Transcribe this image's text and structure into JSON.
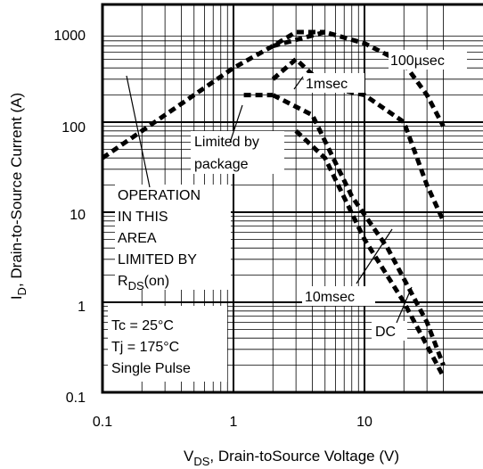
{
  "chart_data": {
    "type": "line",
    "x_scale": "log",
    "y_scale": "log",
    "xlim": [
      0.1,
      40
    ],
    "ylim": [
      0.1,
      1000
    ],
    "grid": true,
    "x_ticks": [
      "0.1",
      "1",
      "10"
    ],
    "y_ticks": [
      "1000",
      "100",
      "10",
      "1",
      "0.1"
    ],
    "xlabel": {
      "main": "V",
      "sub": "DS",
      "rest": ", Drain-toSource Voltage (V)"
    },
    "ylabel": {
      "main": "I",
      "sub": "D",
      "rest": ",  Drain-to-Source Current (A)"
    },
    "annotations": {
      "label_100us": "100µsec",
      "label_1ms": "1msec",
      "label_10ms": "10msec",
      "label_dc": "DC",
      "limited_line1": "Limited by",
      "limited_line2": "package",
      "operation_lines": [
        "OPERATION",
        "IN THIS",
        "AREA",
        "LIMITED BY"
      ],
      "rds_main": "R",
      "rds_sub": "DS",
      "rds_rest": "(on)",
      "conditions": [
        "Tc = 25°C",
        "Tj = 175°C",
        "Single Pulse"
      ]
    },
    "series": [
      {
        "key": "rds_limit",
        "points": [
          [
            0.1,
            40
          ],
          [
            0.2,
            80
          ],
          [
            0.5,
            200
          ],
          [
            1,
            400
          ],
          [
            2,
            700
          ],
          [
            3,
            1000
          ],
          [
            5,
            1000
          ]
        ]
      },
      {
        "key": "package_limit",
        "points": [
          [
            1.2,
            200
          ],
          [
            2,
            200
          ]
        ]
      },
      {
        "key": "100us",
        "points": [
          [
            2,
            700
          ],
          [
            5,
            1000
          ],
          [
            10,
            750
          ],
          [
            20,
            450
          ],
          [
            30,
            200
          ],
          [
            40,
            90
          ]
        ]
      },
      {
        "key": "1ms",
        "points": [
          [
            2,
            300
          ],
          [
            3,
            500
          ],
          [
            5,
            250
          ],
          [
            10,
            200
          ],
          [
            20,
            100
          ],
          [
            30,
            20
          ],
          [
            40,
            8
          ]
        ]
      },
      {
        "key": "10ms",
        "points": [
          [
            2,
            200
          ],
          [
            4,
            120
          ],
          [
            8,
            15
          ],
          [
            15,
            4
          ],
          [
            30,
            0.6
          ],
          [
            40,
            0.2
          ]
        ]
      },
      {
        "key": "dc",
        "points": [
          [
            3,
            80
          ],
          [
            5,
            40
          ],
          [
            10,
            5
          ],
          [
            20,
            1
          ],
          [
            40,
            0.15
          ]
        ]
      }
    ]
  },
  "colors": {
    "line": "#000000",
    "grid": "#000000",
    "background": "#ffffff"
  }
}
